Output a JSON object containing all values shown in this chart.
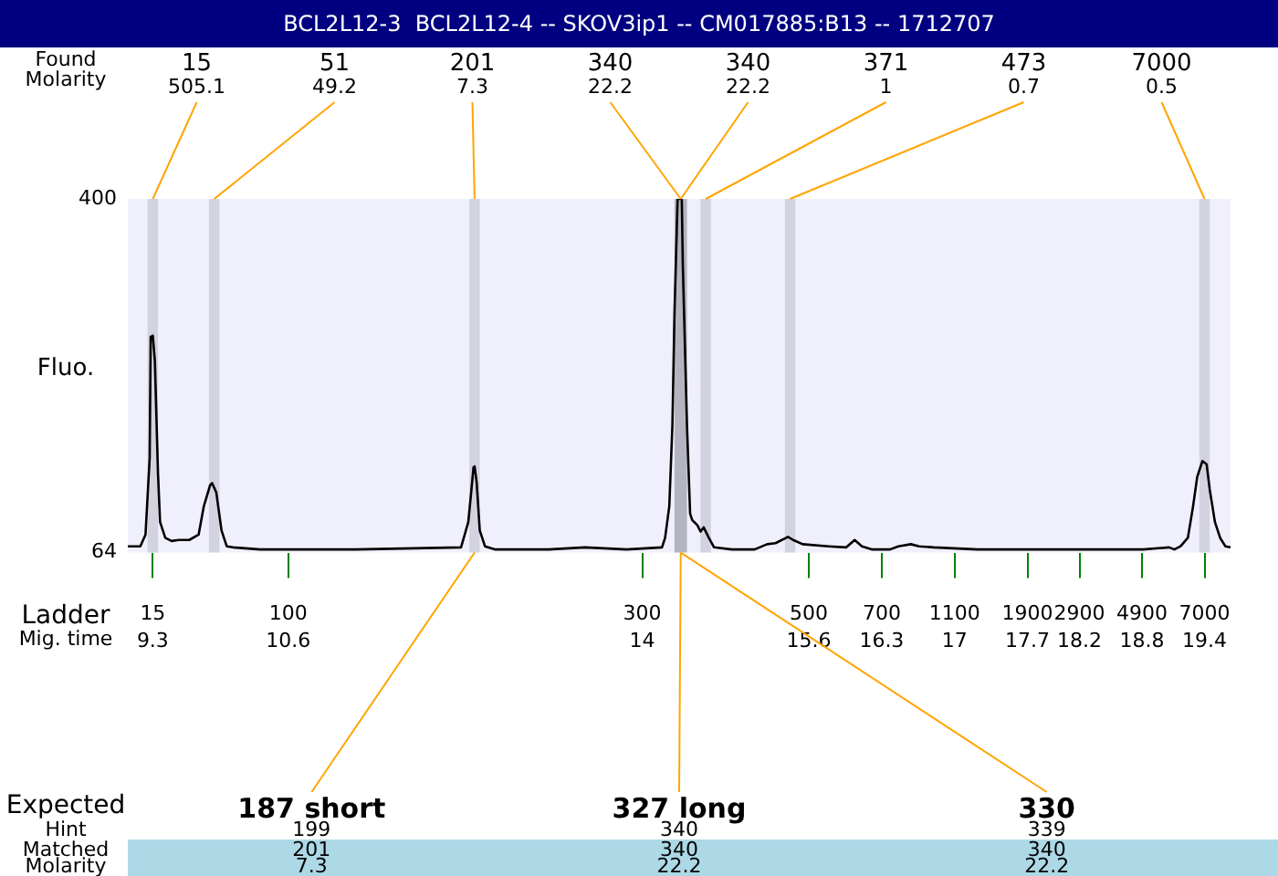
{
  "chart_data": {
    "type": "line",
    "title": "BCL2L12-3  BCL2L12-4 -- SKOV3ip1 -- CM017885:B13 -- 1712707",
    "xlabel": "Mig. time",
    "x2label": "Ladder",
    "ylabel": "Fluo.",
    "x": [
      9.06,
      9.18,
      9.23,
      9.27,
      9.28,
      9.3,
      9.32,
      9.35,
      9.37,
      9.42,
      9.48,
      9.55,
      9.65,
      9.74,
      9.79,
      9.85,
      9.87,
      9.91,
      9.96,
      10.01,
      10.07,
      10.33,
      11.25,
      12.26,
      12.33,
      12.36,
      12.38,
      12.39,
      12.41,
      12.44,
      12.49,
      12.59,
      13.1,
      13.45,
      13.85,
      14.19,
      14.22,
      14.26,
      14.29,
      14.31,
      14.34,
      14.38,
      14.39,
      14.43,
      14.46,
      14.48,
      14.53,
      14.56,
      14.59,
      14.64,
      14.69,
      14.86,
      15.08,
      15.2,
      15.28,
      15.4,
      15.45,
      15.54,
      15.79,
      15.96,
      16.04,
      16.11,
      16.21,
      16.38,
      16.46,
      16.58,
      16.66,
      16.8,
      17.22,
      17.97,
      18.81,
      19.06,
      19.11,
      19.17,
      19.24,
      19.29,
      19.33,
      19.38,
      19.42,
      19.45,
      19.5,
      19.55,
      19.6,
      19.65
    ],
    "series": [
      {
        "color": "#000000",
        "values": [
          70,
          70,
          81,
          154,
          269,
          270,
          246,
          139,
          93,
          78,
          75,
          76,
          76,
          81,
          108,
          128,
          130,
          121,
          85,
          70,
          69,
          67,
          67,
          69,
          93,
          124,
          145,
          146,
          131,
          85,
          70,
          67,
          67,
          69,
          67,
          69,
          78,
          108,
          185,
          292,
          400,
          400,
          337,
          185,
          101,
          95,
          90,
          84,
          88,
          78,
          69,
          67,
          67,
          72,
          73,
          79,
          76,
          72,
          70,
          69,
          76,
          70,
          67,
          67,
          70,
          72,
          70,
          69,
          67,
          67,
          67,
          69,
          67,
          70,
          78,
          108,
          136,
          151,
          148,
          124,
          93,
          78,
          70,
          69
        ]
      }
    ],
    "xlim": [
      9.06,
      19.65
    ],
    "xticks": [
      9.3,
      10.6,
      14,
      15.6,
      16.3,
      17,
      17.7,
      18.2,
      18.8,
      19.4
    ],
    "ylim": [
      64,
      400
    ],
    "yticks": [
      64,
      400
    ],
    "grid": false,
    "marker": "none",
    "bands": [
      {
        "axis": "x",
        "from": 9.25,
        "to": 9.35,
        "color": "#d3d3e0"
      },
      {
        "axis": "x",
        "from": 9.84,
        "to": 9.94,
        "color": "#d3d3e0"
      },
      {
        "axis": "x",
        "from": 12.34,
        "to": 12.44,
        "color": "#d3d3e0"
      },
      {
        "axis": "x",
        "from": 14.31,
        "to": 14.43,
        "color": "#b4b4c0"
      },
      {
        "axis": "x",
        "from": 14.56,
        "to": 14.66,
        "color": "#d3d3e0"
      },
      {
        "axis": "x",
        "from": 15.37,
        "to": 15.47,
        "color": "#d3d3e0"
      },
      {
        "axis": "x",
        "from": 19.35,
        "to": 19.45,
        "color": "#d3d3e0"
      }
    ],
    "annotations": [
      "Found",
      "Molarity",
      "Expected",
      "Hint",
      "Matched",
      "Molarity",
      "15",
      "100",
      "300",
      "500",
      "700",
      "1100",
      "1900",
      "2900",
      "4900",
      "7000",
      "505.1",
      "49.2",
      "7.3",
      "22.2",
      "22.2",
      "1",
      "0.7",
      "0.5",
      "199",
      "201",
      "7.3",
      "340",
      "340",
      "22.2",
      "339",
      "340",
      "22.2",
      {
        "text": "15",
        "x": 9.3,
        "y": 400
      },
      {
        "text": "51",
        "x": 9.89,
        "y": 400
      },
      {
        "text": "201",
        "x": 12.39,
        "y": 400
      },
      {
        "text": "340",
        "x": 14.37,
        "y": 400
      },
      {
        "text": "340",
        "x": 14.37,
        "y": 400
      },
      {
        "text": "371",
        "x": 14.61,
        "y": 400
      },
      {
        "text": "473",
        "x": 15.42,
        "y": 400
      },
      {
        "text": "7000",
        "x": 19.4,
        "y": 400
      },
      {
        "text": "187 short",
        "x": 12.39,
        "y": 64
      },
      {
        "text": "327 long",
        "x": 14.37,
        "y": 64
      },
      {
        "text": "330",
        "x": 14.37,
        "y": 64
      }
    ]
  }
}
